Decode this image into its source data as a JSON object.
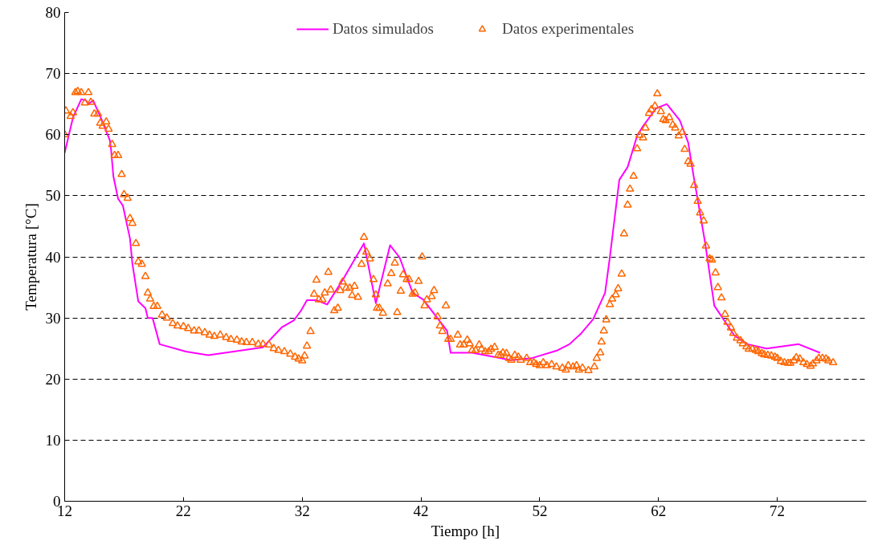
{
  "chart_data": {
    "type": "line",
    "xlabel": "Tiempo [h]",
    "ylabel": "Temperatura [°C]",
    "xlim": [
      12,
      79.5
    ],
    "xticks": [
      12,
      22,
      32,
      42,
      52,
      62,
      72
    ],
    "ylim": [
      0,
      80
    ],
    "yticks": [
      0,
      10,
      20,
      30,
      40,
      50,
      60,
      70,
      80
    ],
    "grid": "y",
    "legend": "top",
    "series": [
      {
        "name": "Datos simulados",
        "color": "#ff00ff",
        "line_style": "solid",
        "x": [
          12,
          12.3,
          12.7,
          13.4,
          13.8,
          14.0,
          14.4,
          15.1,
          15.8,
          15.9,
          16.1,
          16.5,
          16.9,
          17.5,
          17.7,
          18.2,
          18.8,
          19.0,
          19.4,
          20.0,
          22.2,
          24.1,
          28.7,
          30.3,
          31.3,
          31.9,
          32.4,
          33.2,
          34.1,
          35.4,
          37.2,
          38.2,
          39.4,
          40.2,
          41.3,
          42.2,
          44.2,
          44.5,
          46.3,
          49.6,
          51.3,
          53.5,
          54.5,
          55.5,
          56.5,
          57.5,
          57.9,
          58.7,
          59.4,
          60.2,
          60.7,
          61.8,
          62.7,
          63.8,
          64.5,
          64.8,
          65.9,
          66.7,
          68.4,
          69.5,
          71.1,
          73.8,
          75.6
        ],
        "values": [
          57,
          59.5,
          62.8,
          65.8,
          65.6,
          65.0,
          65.6,
          62.5,
          59.1,
          57.7,
          53.2,
          49.5,
          48.4,
          43.0,
          38.9,
          32.7,
          31.6,
          30.0,
          30.0,
          25.7,
          24.5,
          23.9,
          25.2,
          28.5,
          29.6,
          31.2,
          32.9,
          32.9,
          32.2,
          36.2,
          42.2,
          32.4,
          41.9,
          39.9,
          34.1,
          33.0,
          27.9,
          24.3,
          24.3,
          23.1,
          23.4,
          24.7,
          25.7,
          27.5,
          29.8,
          34.1,
          39.9,
          52.6,
          54.7,
          59.8,
          61.4,
          64.3,
          65.0,
          62.3,
          58.7,
          55.0,
          42.6,
          32.0,
          27.1,
          25.7,
          25.0,
          25.7,
          24.3
        ]
      },
      {
        "name": "Datos experimentales",
        "type": "scatter",
        "color": "#ff6600",
        "marker": "triangle",
        "x": [
          12,
          12.1,
          12.5,
          12.7,
          12.9,
          13.1,
          13.4,
          13.7,
          14.0,
          14.2,
          14.5,
          14.8,
          15.0,
          15.2,
          15.5,
          15.7,
          16.0,
          16.2,
          16.5,
          16.8,
          17.0,
          17.3,
          17.5,
          17.7,
          18.0,
          18.2,
          18.5,
          18.8,
          19.0,
          19.2,
          19.5,
          19.8,
          20.2,
          20.6,
          21.1,
          21.5,
          22.0,
          22.4,
          22.9,
          23.3,
          23.8,
          24.2,
          24.6,
          25.1,
          25.6,
          26.0,
          26.5,
          26.9,
          27.3,
          27.8,
          28.3,
          28.7,
          29.2,
          29.6,
          30.0,
          30.5,
          31.0,
          31.4,
          31.7,
          32.0,
          32.2,
          32.4,
          32.7,
          33.0,
          33.2,
          33.4,
          33.7,
          33.9,
          34.2,
          34.4,
          34.7,
          35.0,
          35.2,
          35.4,
          35.7,
          36.0,
          36.2,
          36.4,
          36.7,
          37.0,
          37.2,
          37.4,
          37.7,
          38.0,
          38.2,
          38.3,
          38.5,
          38.8,
          39.2,
          39.5,
          39.8,
          40.0,
          40.3,
          40.5,
          40.8,
          41.0,
          41.3,
          41.5,
          41.8,
          42.1,
          42.3,
          42.5,
          42.9,
          43.1,
          43.4,
          43.6,
          43.8,
          44.1,
          44.3,
          44.5,
          45.1,
          45.3,
          45.6,
          45.9,
          46.1,
          46.3,
          46.6,
          46.9,
          47.1,
          47.4,
          47.7,
          47.9,
          48.2,
          48.5,
          48.7,
          48.9,
          49.2,
          49.4,
          49.6,
          49.9,
          50.2,
          50.4,
          50.9,
          51.2,
          51.5,
          51.7,
          52.0,
          52.3,
          52.6,
          53.0,
          53.4,
          53.9,
          54.2,
          54.4,
          54.8,
          55.1,
          55.3,
          55.6,
          56.1,
          56.6,
          56.8,
          57.1,
          57.2,
          57.4,
          57.6,
          57.9,
          58.1,
          58.4,
          58.6,
          58.9,
          59.1,
          59.4,
          59.6,
          59.9,
          60.2,
          60.4,
          60.7,
          60.9,
          61.2,
          61.4,
          61.7,
          61.9,
          62.2,
          62.4,
          62.6,
          62.9,
          63.2,
          63.4,
          63.7,
          64.0,
          64.2,
          64.5,
          64.7,
          65.0,
          65.3,
          65.5,
          65.8,
          66.0,
          66.3,
          66.5,
          66.8,
          67.0,
          67.3,
          67.6,
          67.8,
          68.1,
          68.3,
          68.6,
          68.9,
          69.1,
          69.4,
          69.6,
          69.9,
          70.2,
          70.4,
          70.7,
          70.9,
          71.2,
          71.5,
          71.8,
          72.0,
          72.3,
          72.6,
          72.9,
          73.1,
          73.4,
          73.6,
          73.9,
          74.2,
          74.5,
          74.8,
          75.0,
          75.3,
          75.5,
          75.8,
          76.1,
          76.3,
          76.7
        ],
        "values": [
          60,
          63.9,
          63.0,
          63.6,
          66.9,
          67.1,
          66.9,
          65.2,
          66.9,
          65.3,
          63.4,
          63.4,
          61.9,
          61.4,
          62.1,
          60.9,
          58.4,
          56.6,
          56.6,
          53.5,
          50.2,
          49.6,
          46.3,
          45.5,
          42.2,
          39.2,
          38.8,
          36.8,
          34.1,
          33.1,
          31.9,
          31.9,
          30.5,
          30.0,
          29.1,
          28.7,
          28.6,
          28.3,
          27.9,
          27.9,
          27.6,
          27.2,
          27.0,
          27.2,
          26.8,
          26.5,
          26.4,
          26.1,
          26.0,
          26.0,
          25.7,
          25.7,
          25.6,
          25.0,
          24.7,
          24.5,
          24.1,
          23.6,
          23.3,
          23.0,
          23.8,
          25.4,
          27.8,
          33.9,
          36.2,
          33.0,
          33.0,
          34.1,
          37.5,
          34.6,
          31.2,
          31.6,
          34.5,
          35.9,
          34.9,
          34.9,
          33.7,
          35.2,
          33.4,
          38.8,
          43.2,
          40.8,
          39.7,
          36.3,
          33.8,
          31.6,
          31.6,
          30.8,
          35.6,
          37.3,
          39.0,
          30.9,
          34.4,
          37.1,
          36.3,
          36.3,
          33.9,
          34.1,
          36.0,
          40.0,
          32.0,
          33.0,
          33.5,
          34.5,
          30.2,
          28.7,
          27.8,
          32.0,
          26.5,
          26.5,
          27.2,
          25.6,
          25.6,
          26.4,
          25.8,
          24.7,
          24.7,
          25.6,
          24.9,
          24.5,
          24.5,
          24.9,
          25.2,
          23.9,
          23.9,
          24.3,
          24.2,
          23.4,
          23.1,
          23.9,
          23.6,
          23.1,
          23.4,
          22.7,
          22.7,
          22.4,
          22.2,
          22.7,
          22.2,
          22.4,
          22.0,
          21.8,
          21.5,
          22.2,
          22.0,
          22.2,
          21.5,
          21.8,
          21.4,
          22.0,
          23.4,
          24.3,
          26.1,
          27.9,
          29.7,
          32.2,
          33.1,
          33.8,
          34.8,
          37.2,
          43.8,
          48.5,
          51.1,
          53.2,
          57.7,
          59.9,
          59.5,
          61.1,
          63.5,
          64.1,
          64.7,
          66.7,
          63.8,
          62.5,
          62.3,
          62.8,
          61.6,
          61.1,
          59.8,
          60.4,
          57.6,
          55.6,
          55.2,
          51.7,
          49.1,
          47.2,
          45.9,
          41.8,
          39.7,
          39.5,
          37.4,
          35.0,
          33.3,
          30.6,
          29.3,
          28.4,
          27.5,
          26.7,
          26.3,
          25.8,
          25.3,
          24.9,
          24.9,
          24.7,
          24.5,
          24.2,
          24.0,
          23.9,
          23.8,
          23.6,
          23.4,
          22.9,
          22.7,
          22.6,
          22.6,
          23.0,
          23.5,
          23.3,
          22.7,
          22.4,
          22.1,
          22.5,
          23.0,
          23.4,
          23.4,
          23.3,
          23.0,
          22.7
        ]
      }
    ]
  }
}
